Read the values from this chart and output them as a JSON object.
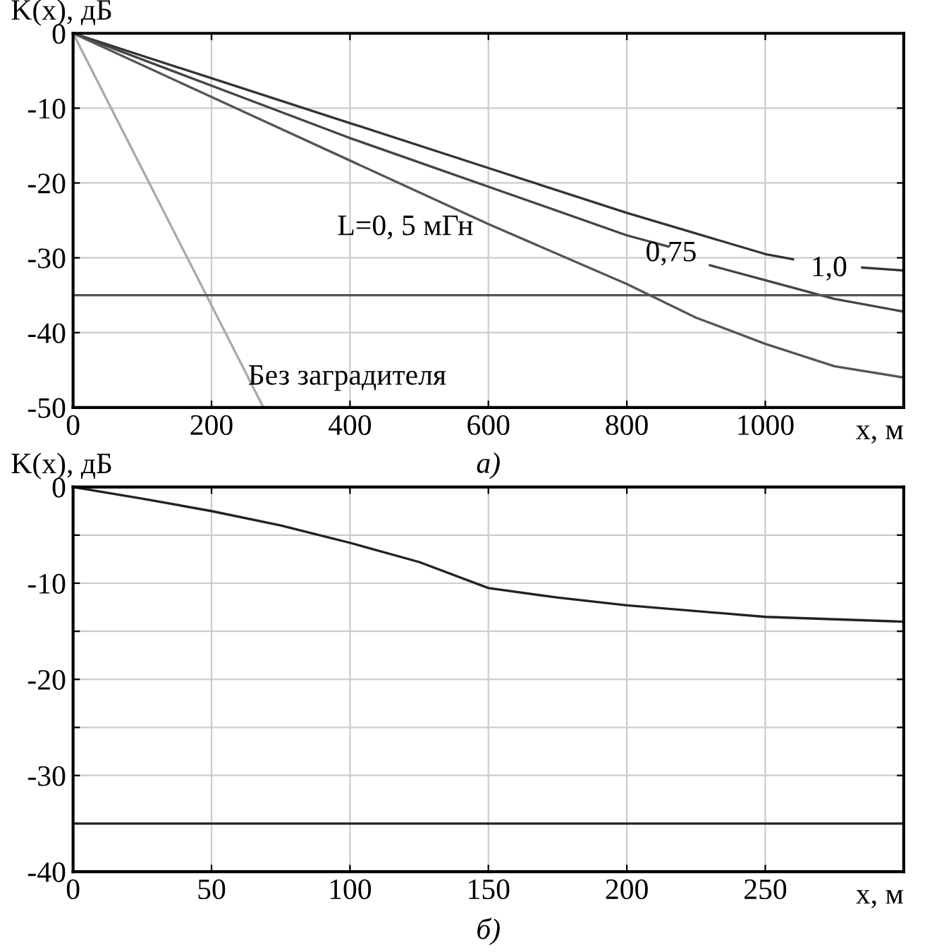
{
  "chart_data": [
    {
      "type": "line",
      "ylabel": "K(x), дБ",
      "xlabel": "x, м",
      "xlim": [
        0,
        1200
      ],
      "xticks": [
        0,
        200,
        400,
        600,
        800,
        1000
      ],
      "ylim": [
        -50,
        0
      ],
      "yticks": [
        -50,
        -40,
        -30,
        -20,
        -10,
        0
      ],
      "grid": true,
      "legend": false,
      "series": [
        {
          "color": "#333333",
          "x": [
            0,
            200,
            400,
            600,
            800,
            1000,
            1040,
            1090,
            1140,
            1200
          ],
          "values": [
            0,
            -6,
            -12,
            -18,
            -24,
            -29.5,
            -30.2,
            null,
            -31.3,
            -31.7
          ]
        },
        {
          "color": "#444444",
          "x": [
            0,
            200,
            400,
            600,
            800,
            860,
            890,
            920,
            1000,
            1100,
            1200
          ],
          "values": [
            0,
            -7,
            -14,
            -20.5,
            -27,
            -28.5,
            null,
            -31,
            -33,
            -35.5,
            -37.2
          ]
        },
        {
          "color": "#555555",
          "x": [
            0,
            200,
            400,
            600,
            800,
            900,
            1000,
            1100,
            1200
          ],
          "values": [
            0,
            -8.5,
            -17,
            -25.5,
            -33.5,
            -38,
            -41.5,
            -44.5,
            -46
          ]
        },
        {
          "color": "#aaaaaa",
          "x": [
            0,
            275
          ],
          "values": [
            0,
            -50
          ]
        }
      ],
      "ref_lines": [
        {
          "axis": "y",
          "value": -35,
          "color": "#555555"
        }
      ],
      "annotations": [
        "L=0, 5 мГн",
        "0,75",
        "1,0",
        "Без заградителя",
        "а)"
      ]
    },
    {
      "type": "line",
      "ylabel": "K(x), дБ",
      "xlabel": "x, м",
      "xlim": [
        0,
        300
      ],
      "xticks": [
        0,
        50,
        100,
        150,
        200,
        250
      ],
      "ylim": [
        -40,
        0
      ],
      "yticks": [
        -40,
        {
          "value": -35,
          "label": null
        },
        -30,
        {
          "value": -25,
          "label": null
        },
        -20,
        {
          "value": -15,
          "label": null
        },
        -10,
        {
          "value": -5,
          "label": null
        },
        0
      ],
      "grid": true,
      "legend": false,
      "series": [
        {
          "color": "#222222",
          "x": [
            0,
            25,
            50,
            75,
            100,
            125,
            150,
            175,
            200,
            250,
            300
          ],
          "values": [
            0,
            -1.2,
            -2.5,
            -4,
            -5.8,
            -7.8,
            -10.5,
            -11.5,
            -12.3,
            -13.5,
            -14
          ]
        }
      ],
      "ref_lines": [
        {
          "axis": "y",
          "value": -35,
          "color": "#222222"
        }
      ],
      "annotations": [
        "б)"
      ]
    }
  ]
}
